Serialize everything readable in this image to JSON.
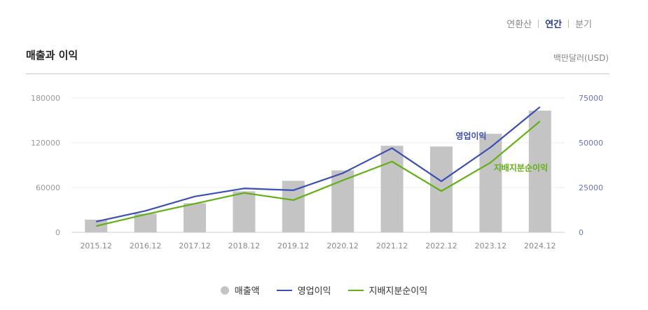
{
  "period_tabs": [
    {
      "label": "연환산",
      "active": false
    },
    {
      "label": "연간",
      "active": true
    },
    {
      "label": "분기",
      "active": false
    }
  ],
  "section_title": "매출과 이익",
  "unit": "백만달러(USD)",
  "chart_data": {
    "type": "bar+line",
    "categories": [
      "2015.12",
      "2016.12",
      "2017.12",
      "2018.12",
      "2019.12",
      "2020.12",
      "2021.12",
      "2022.12",
      "2023.12",
      "2024.12"
    ],
    "y_left": {
      "ticks": [
        "0",
        "60000",
        "120000",
        "180000"
      ],
      "ylim": [
        0,
        180000
      ]
    },
    "y_right": {
      "ticks": [
        "0",
        "25000",
        "50000",
        "75000"
      ],
      "ylim": [
        0,
        75000
      ]
    },
    "grid": true,
    "legend_position": "bottom",
    "series": [
      {
        "name": "매출액",
        "type": "bar",
        "axis": "left",
        "color": "#c4c4c4",
        "values": [
          17000,
          25000,
          39000,
          55000,
          69000,
          83000,
          116000,
          115000,
          132000,
          163000
        ]
      },
      {
        "name": "영업이익",
        "type": "line",
        "axis": "right",
        "color": "#3b4fb5",
        "values": [
          6000,
          12000,
          20000,
          24500,
          23500,
          33000,
          47000,
          28500,
          47500,
          70000
        ]
      },
      {
        "name": "지배지분순이익",
        "type": "line",
        "axis": "right",
        "color": "#62b015",
        "values": [
          3500,
          10000,
          16000,
          22000,
          18000,
          29000,
          39500,
          23000,
          39000,
          62000
        ]
      }
    ],
    "annotations": [
      {
        "text": "영업이익",
        "series": "영업이익"
      },
      {
        "text": "지배지분순이익",
        "series": "지배지분순이익"
      }
    ]
  },
  "legend": [
    {
      "label": "매출액",
      "kind": "dot",
      "color": "#c4c4c4"
    },
    {
      "label": "영업이익",
      "kind": "line",
      "color": "#3b4fb5"
    },
    {
      "label": "지배지분순이익",
      "kind": "line",
      "color": "#62b015"
    }
  ]
}
